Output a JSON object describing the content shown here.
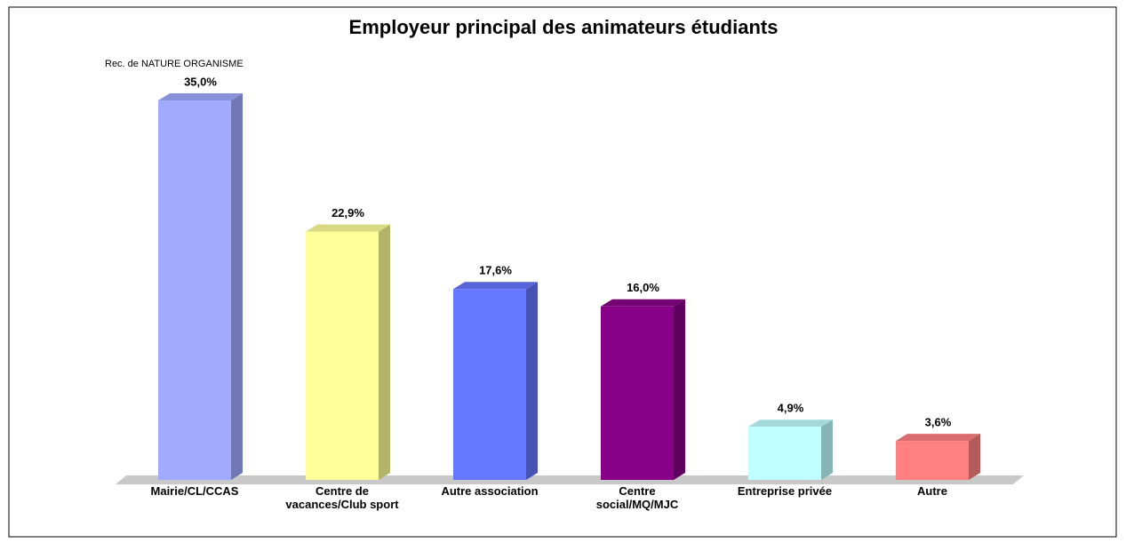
{
  "chart_data": {
    "type": "bar3d",
    "title": "Employeur principal des animateurs étudiants",
    "subtitle": "Rec. de NATURE ORGANISME",
    "categories": [
      "Mairie/CL/CCAS",
      "Centre de vacances/Club sport",
      "Autre association",
      "Centre social/MQ/MJC",
      "Entreprise privée",
      "Autre"
    ],
    "values": [
      35.0,
      22.9,
      17.6,
      16.0,
      4.9,
      3.6
    ],
    "value_labels": [
      "35,0%",
      "22,9%",
      "17,6%",
      "16,0%",
      "4,9%",
      "3,6%"
    ],
    "colors": [
      "#a0aaff",
      "#ffff99",
      "#6677ff",
      "#880088",
      "#c0ffff",
      "#ff8080"
    ]
  }
}
